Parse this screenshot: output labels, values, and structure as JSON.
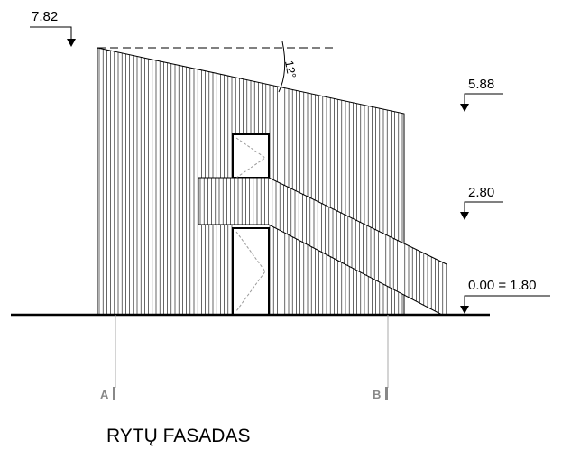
{
  "levels": [
    "7.82",
    "5.88",
    "2.80",
    "0.00 = 1.80"
  ],
  "angle": "12°",
  "grid": [
    "A",
    "B"
  ],
  "title": "RYTŲ FASADAS"
}
